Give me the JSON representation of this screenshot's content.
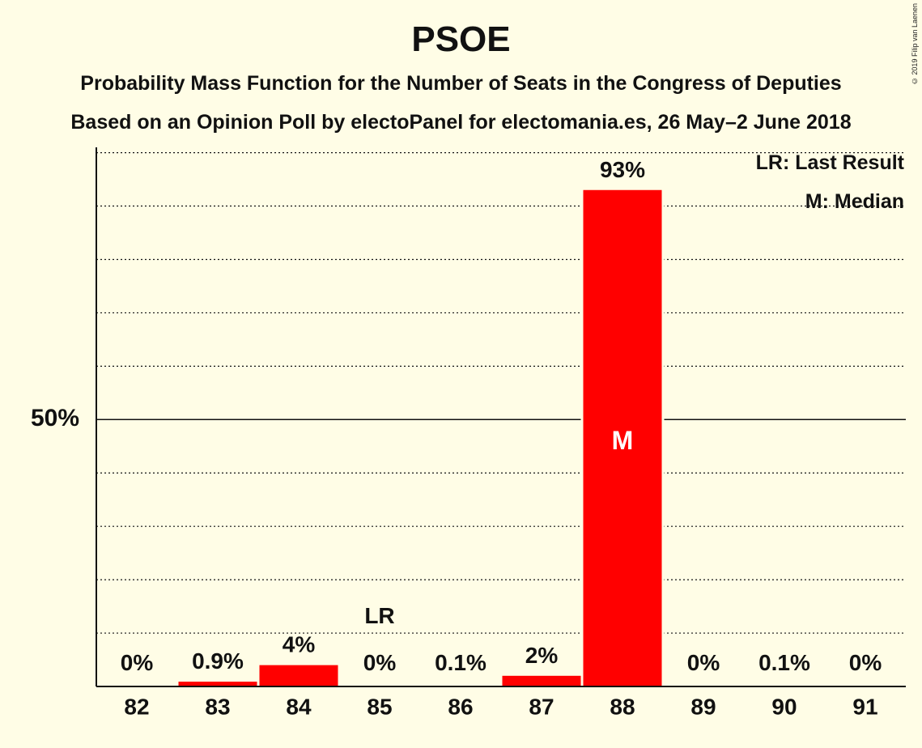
{
  "chart_data": {
    "type": "bar",
    "title": "PSOE",
    "subtitle_1": "Probability Mass Function for the Number of Seats in the Congress of Deputies",
    "subtitle_2": "Based on an Opinion Poll by electoPanel for electomania.es, 26 May–2 June 2018",
    "copyright": "© 2019 Filip van Laenen",
    "categories": [
      "82",
      "83",
      "84",
      "85",
      "86",
      "87",
      "88",
      "89",
      "90",
      "91"
    ],
    "values": [
      0,
      0.9,
      4,
      0,
      0.1,
      2,
      93,
      0,
      0.1,
      0
    ],
    "value_labels": [
      "0%",
      "0.9%",
      "4%",
      "0%",
      "0.1%",
      "2%",
      "93%",
      "0%",
      "0.1%",
      "0%"
    ],
    "ylim": [
      0,
      101
    ],
    "y_tick_label": "50%",
    "y_tick_value": 50,
    "gridlines_every": 10,
    "last_result_category": "85",
    "last_result_marker": "LR",
    "median_category": "88",
    "median_marker": "M",
    "legend": [
      "LR: Last Result",
      "M: Median"
    ],
    "legend_position": "top-right",
    "bar_color": "#ff0000"
  }
}
